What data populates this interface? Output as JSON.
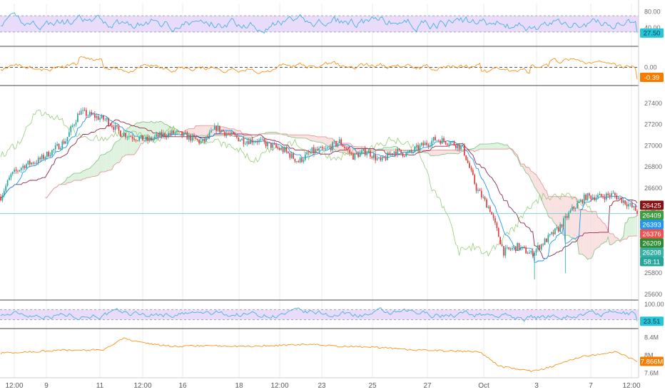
{
  "colors": {
    "up": "#26a69a",
    "down": "#e0393e",
    "rsi": "#45b1e0",
    "osc": "#f7931a",
    "rsi_band": "#e9dcfb",
    "grid": "#ededed",
    "pane_border": "#444444",
    "price_line": "#7fd3cf",
    "cloud_green": "#d9f0d9",
    "cloud_red": "#f8dcdc",
    "span_a": "#8bc78b",
    "span_b": "#e39a9a",
    "tenkan": "#2196f3",
    "kijun": "#8e2a4a"
  },
  "x_axis_labels": [
    "12:00",
    "9",
    "11",
    "12:00",
    "16",
    "18",
    "12:00",
    "23",
    "25",
    "27",
    "Oct",
    "3",
    "7",
    "12:00"
  ],
  "chart_data": [
    {
      "type": "line",
      "pane": "rsi_top",
      "y_ticks": [
        "80.00",
        "40.00"
      ],
      "ylim": [
        0,
        100
      ],
      "band": [
        30,
        70
      ],
      "last_value_label": "27.50"
    },
    {
      "type": "line",
      "pane": "oscillator",
      "y_ticks": [
        "0.00"
      ],
      "zero_line": true,
      "last_value_label": "-0.39"
    },
    {
      "type": "candlestick",
      "pane": "price",
      "y_ticks": [
        "27400",
        "27200",
        "27000",
        "26800",
        "26600",
        "26400",
        "26200",
        "26000",
        "25800",
        "25600"
      ],
      "ylim": [
        25560,
        27560
      ],
      "anchors": [
        [
          0,
          26520
        ],
        [
          6,
          26720
        ],
        [
          14,
          26820
        ],
        [
          22,
          26860
        ],
        [
          30,
          26950
        ],
        [
          38,
          27050
        ],
        [
          46,
          27320
        ],
        [
          54,
          27280
        ],
        [
          62,
          27240
        ],
        [
          70,
          27120
        ],
        [
          78,
          27080
        ],
        [
          86,
          27050
        ],
        [
          94,
          27100
        ],
        [
          102,
          27120
        ],
        [
          110,
          27080
        ],
        [
          118,
          27030
        ],
        [
          126,
          27170
        ],
        [
          134,
          27100
        ],
        [
          142,
          27050
        ],
        [
          150,
          27050
        ],
        [
          158,
          27000
        ],
        [
          166,
          26950
        ],
        [
          174,
          26850
        ],
        [
          182,
          26950
        ],
        [
          190,
          26960
        ],
        [
          198,
          27040
        ],
        [
          206,
          26900
        ],
        [
          214,
          26950
        ],
        [
          222,
          26850
        ],
        [
          230,
          26950
        ],
        [
          238,
          26920
        ],
        [
          246,
          27000
        ],
        [
          254,
          27060
        ],
        [
          262,
          27040
        ],
        [
          270,
          26980
        ],
        [
          278,
          26600
        ],
        [
          286,
          26400
        ],
        [
          294,
          26000
        ],
        [
          302,
          26050
        ],
        [
          310,
          25980
        ],
        [
          318,
          26100
        ],
        [
          326,
          26220
        ],
        [
          334,
          26400
        ],
        [
          342,
          26520
        ],
        [
          350,
          26520
        ],
        [
          358,
          26540
        ],
        [
          366,
          26460
        ],
        [
          372,
          26380
        ]
      ],
      "last_value_label": "26376",
      "labels": [
        {
          "value": "26425",
          "bg": "#8b0f0f"
        },
        {
          "value": "26409",
          "bg": "#3e9b3e"
        },
        {
          "value": "26393",
          "bg": "#2196f3"
        },
        {
          "value": "26376",
          "bg": "#ef5350"
        },
        {
          "value": "26209",
          "bg": "#2e8b2e"
        },
        {
          "value": "26208",
          "bg": "#3ab0a5"
        },
        {
          "value": "58:11",
          "bg": "#26a69a"
        }
      ]
    },
    {
      "type": "line",
      "pane": "rsi_bottom",
      "y_ticks": [
        "100.00"
      ],
      "ylim": [
        0,
        100
      ],
      "band": [
        30,
        70
      ],
      "last_value_label": "23.51"
    },
    {
      "type": "line",
      "pane": "volume_line",
      "y_ticks": [
        "8.4M",
        "8M",
        "7.6M"
      ],
      "ylim": [
        7.5,
        8.55
      ],
      "anchors": [
        [
          0,
          8.05
        ],
        [
          40,
          8.12
        ],
        [
          60,
          8.12
        ],
        [
          72,
          8.38
        ],
        [
          82,
          8.28
        ],
        [
          100,
          8.2
        ],
        [
          120,
          8.22
        ],
        [
          140,
          8.2
        ],
        [
          160,
          8.22
        ],
        [
          180,
          8.25
        ],
        [
          200,
          8.2
        ],
        [
          220,
          8.18
        ],
        [
          240,
          8.12
        ],
        [
          260,
          8.1
        ],
        [
          280,
          8.08
        ],
        [
          292,
          7.75
        ],
        [
          310,
          7.65
        ],
        [
          320,
          7.72
        ],
        [
          340,
          7.98
        ],
        [
          360,
          8.08
        ],
        [
          372,
          7.866
        ]
      ],
      "last_value_label": "7.866M"
    }
  ]
}
